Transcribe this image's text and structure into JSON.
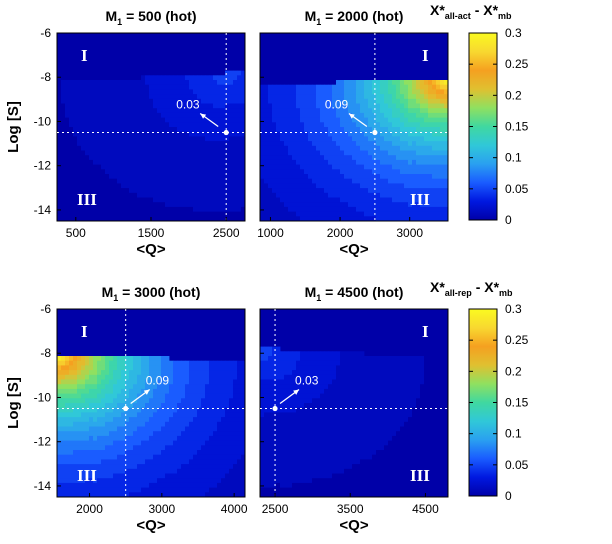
{
  "colors": {
    "cmap": [
      "#0000a8",
      "#0018e0",
      "#1a5cff",
      "#2aa0f0",
      "#30c8d8",
      "#40d8a0",
      "#90e060",
      "#e0c030",
      "#f5a020",
      "#f8d830",
      "#fafa20"
    ],
    "white": "#ffffff"
  },
  "colorbars": [
    {
      "label_main": "X*",
      "label_sub": "all-act",
      "label_mid": " - X*",
      "label_sub2": "mb",
      "ticks": [
        "0.3",
        "0.25",
        "0.2",
        "0.15",
        "0.1",
        "0.05",
        "0"
      ]
    },
    {
      "label_main": "X*",
      "label_sub": "all-rep",
      "label_mid": " - X*",
      "label_sub2": "mb",
      "ticks": [
        "0.3",
        "0.25",
        "0.2",
        "0.15",
        "0.1",
        "0.05",
        "0"
      ]
    }
  ],
  "chart_data": [
    {
      "type": "heatmap",
      "title_pre": "M",
      "title_sub": "1",
      "title_post": " = 500 (hot)",
      "xlabel": "<Q>",
      "ylabel": "Log [S]",
      "xlim": [
        250,
        2750
      ],
      "ylim": [
        -14.5,
        -6
      ],
      "xticks": [
        500,
        1500,
        2500
      ],
      "yticks": [
        -6,
        -8,
        -10,
        -12,
        -14
      ],
      "xtick_labels": [
        "500",
        "1500",
        "2500"
      ],
      "ytick_labels": [
        "-6",
        "-8",
        "-10",
        "-12",
        "-14"
      ],
      "boundary_left": -8.25,
      "boundary_right": -7.8,
      "hot_q": 2500,
      "hot_mode": "right",
      "max_value": 0.05,
      "marker": {
        "q": 2500,
        "s": -10.5
      },
      "annotation": "0.03",
      "region_top": "I",
      "region_bottom": "III",
      "show_ylabel": true
    },
    {
      "type": "heatmap",
      "title_pre": "M",
      "title_sub": "1",
      "title_post": " = 2000 (hot)",
      "xlabel": "<Q>",
      "ylabel": "Log [S]",
      "xlim": [
        850,
        3550
      ],
      "ylim": [
        -14.5,
        -6
      ],
      "xticks": [
        1000,
        2000,
        3000
      ],
      "yticks": [
        -6,
        -8,
        -10,
        -12,
        -14
      ],
      "xtick_labels": [
        "1000",
        "2000",
        "3000"
      ],
      "ytick_labels": [
        "-6",
        "-8",
        "-10",
        "-12",
        "-14"
      ],
      "boundary_left": -8.35,
      "boundary_right": -8.1,
      "hot_q": 3550,
      "hot_mode": "right",
      "max_value": 0.3,
      "marker": {
        "q": 2500,
        "s": -10.5
      },
      "annotation": "0.09",
      "region_top": "I",
      "region_bottom": "III",
      "show_ylabel": false
    },
    {
      "type": "heatmap",
      "title_pre": "M",
      "title_sub": "1",
      "title_post": " = 3000 (hot)",
      "xlabel": "<Q>",
      "ylabel": "Log [S]",
      "xlim": [
        1550,
        4150
      ],
      "ylim": [
        -14.5,
        -6
      ],
      "xticks": [
        2000,
        3000,
        4000
      ],
      "yticks": [
        -6,
        -8,
        -10,
        -12,
        -14
      ],
      "xtick_labels": [
        "2000",
        "3000",
        "4000"
      ],
      "ytick_labels": [
        "-6",
        "-8",
        "-10",
        "-12",
        "-14"
      ],
      "boundary_left": -8.1,
      "boundary_right": -8.35,
      "hot_q": 1550,
      "hot_mode": "left",
      "max_value": 0.3,
      "marker": {
        "q": 2500,
        "s": -10.5
      },
      "annotation": "0.09",
      "region_top": "I",
      "region_bottom": "III",
      "show_ylabel": true
    },
    {
      "type": "heatmap",
      "title_pre": "M",
      "title_sub": "1",
      "title_post": " = 4500 (hot)",
      "xlabel": "<Q>",
      "ylabel": "Log [S]",
      "xlim": [
        2300,
        4800
      ],
      "ylim": [
        -14.5,
        -6
      ],
      "xticks": [
        2500,
        3500,
        4500
      ],
      "yticks": [
        -6,
        -8,
        -10,
        -12,
        -14
      ],
      "xtick_labels": [
        "2500",
        "3500",
        "4500"
      ],
      "ytick_labels": [
        "-6",
        "-8",
        "-10",
        "-12",
        "-14"
      ],
      "boundary_left": -7.8,
      "boundary_right": -8.25,
      "hot_q": 2300,
      "hot_mode": "left",
      "max_value": 0.05,
      "marker": {
        "q": 2500,
        "s": -10.5
      },
      "annotation": "0.03",
      "region_top": "I",
      "region_bottom": "III",
      "show_ylabel": false
    }
  ]
}
